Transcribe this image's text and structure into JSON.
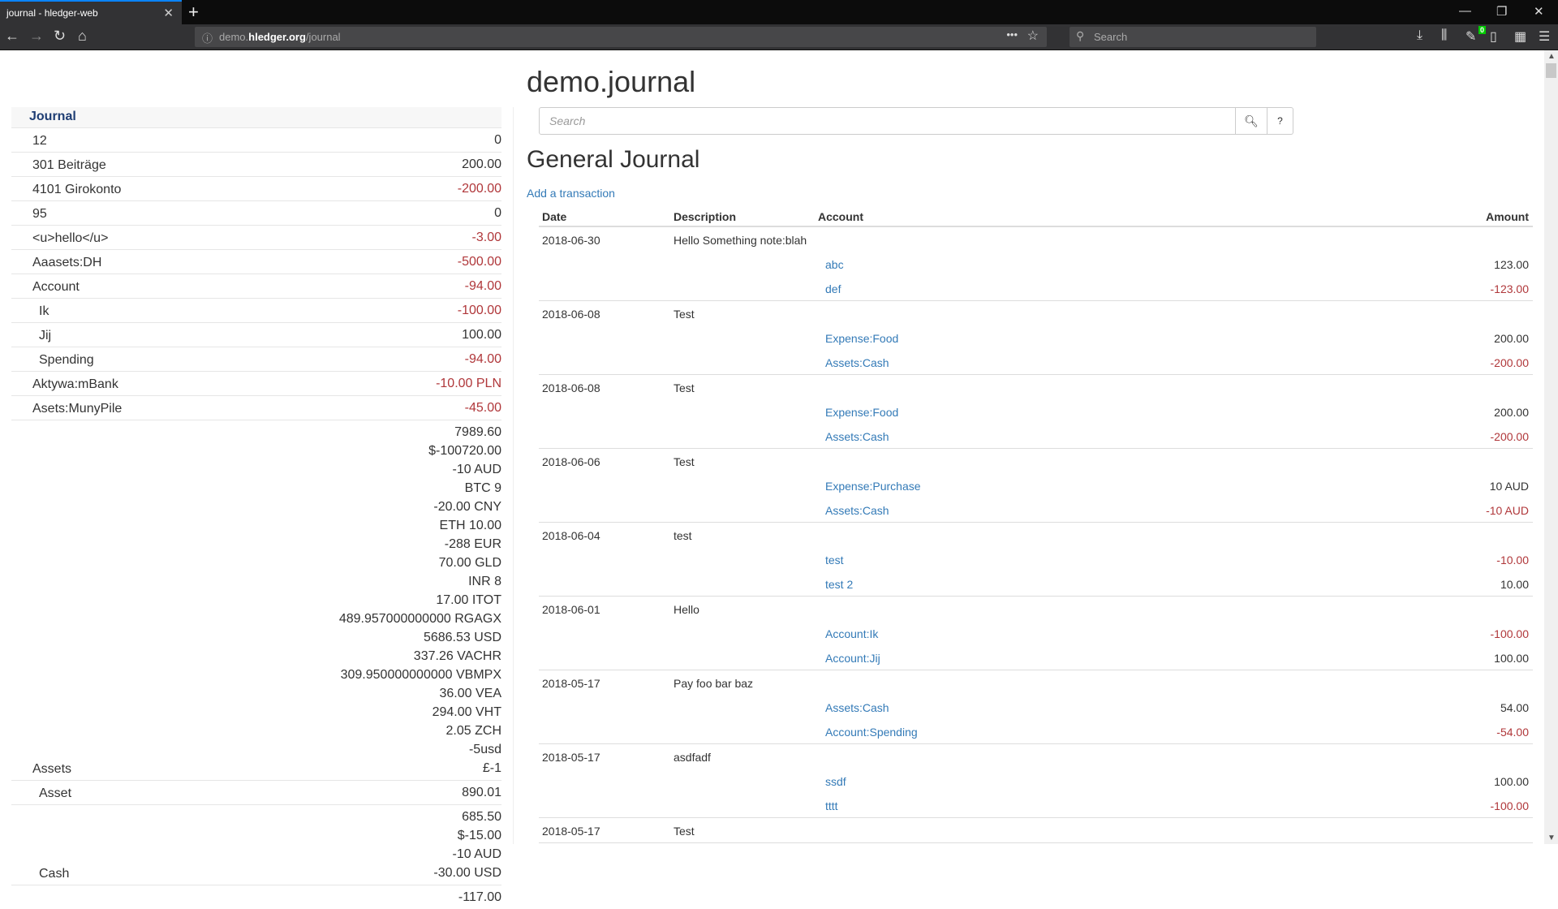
{
  "browser": {
    "tab_title": "journal - hledger-web",
    "url_host_pre": "demo.",
    "url_host_bold": "hledger.org",
    "url_path": "/journal",
    "search_placeholder": "Search",
    "badge": "0"
  },
  "sidebar": {
    "header": "Journal",
    "rows": [
      {
        "name": "12",
        "indent": 0,
        "amounts": [
          {
            "v": "0",
            "neg": false
          }
        ]
      },
      {
        "name": "301 Beiträge",
        "indent": 0,
        "amounts": [
          {
            "v": "200.00",
            "neg": false
          }
        ]
      },
      {
        "name": "4101 Girokonto",
        "indent": 0,
        "amounts": [
          {
            "v": "-200.00",
            "neg": true
          }
        ]
      },
      {
        "name": "95",
        "indent": 0,
        "amounts": [
          {
            "v": "0",
            "neg": false
          }
        ]
      },
      {
        "name": "<u>hello</u>",
        "indent": 0,
        "amounts": [
          {
            "v": "-3.00",
            "neg": true
          }
        ]
      },
      {
        "name": "Aaasets:DH",
        "indent": 0,
        "amounts": [
          {
            "v": "-500.00",
            "neg": true
          }
        ]
      },
      {
        "name": "Account",
        "indent": 0,
        "amounts": [
          {
            "v": "-94.00",
            "neg": true
          }
        ]
      },
      {
        "name": "Ik",
        "indent": 1,
        "amounts": [
          {
            "v": "-100.00",
            "neg": true
          }
        ]
      },
      {
        "name": "Jij",
        "indent": 1,
        "amounts": [
          {
            "v": "100.00",
            "neg": false
          }
        ]
      },
      {
        "name": "Spending",
        "indent": 1,
        "amounts": [
          {
            "v": "-94.00",
            "neg": true
          }
        ]
      },
      {
        "name": "Aktywa:mBank",
        "indent": 0,
        "amounts": [
          {
            "v": "-10.00 PLN",
            "neg": true
          }
        ]
      },
      {
        "name": "Asets:MunyPile",
        "indent": 0,
        "amounts": [
          {
            "v": "-45.00",
            "neg": true
          }
        ]
      },
      {
        "name": "Assets",
        "indent": 0,
        "amounts": [
          {
            "v": "7989.60",
            "neg": false
          },
          {
            "v": "$-100720.00",
            "neg": false
          },
          {
            "v": "-10 AUD",
            "neg": false
          },
          {
            "v": "BTC 9",
            "neg": false
          },
          {
            "v": "-20.00 CNY",
            "neg": false
          },
          {
            "v": "ETH 10.00",
            "neg": false
          },
          {
            "v": "-288 EUR",
            "neg": false
          },
          {
            "v": "70.00 GLD",
            "neg": false
          },
          {
            "v": "INR 8",
            "neg": false
          },
          {
            "v": "17.00 ITOT",
            "neg": false
          },
          {
            "v": "489.957000000000 RGAGX",
            "neg": false
          },
          {
            "v": "5686.53 USD",
            "neg": false
          },
          {
            "v": "337.26 VACHR",
            "neg": false
          },
          {
            "v": "309.950000000000 VBMPX",
            "neg": false
          },
          {
            "v": "36.00 VEA",
            "neg": false
          },
          {
            "v": "294.00 VHT",
            "neg": false
          },
          {
            "v": "2.05 ZCH",
            "neg": false
          },
          {
            "v": "-5usd",
            "neg": false
          },
          {
            "v": "£-1",
            "neg": false
          }
        ]
      },
      {
        "name": "Asset",
        "indent": 1,
        "amounts": [
          {
            "v": "890.01",
            "neg": false
          }
        ]
      },
      {
        "name": "Cash",
        "indent": 1,
        "amounts": [
          {
            "v": "685.50",
            "neg": false
          },
          {
            "v": "$-15.00",
            "neg": false
          },
          {
            "v": "-10 AUD",
            "neg": false
          },
          {
            "v": "-30.00 USD",
            "neg": false
          }
        ]
      },
      {
        "name": "",
        "indent": 1,
        "amounts": [
          {
            "v": "-117.00",
            "neg": false
          }
        ]
      }
    ]
  },
  "main": {
    "title": "demo.journal",
    "search_placeholder": "Search",
    "help_label": "?",
    "heading": "General Journal",
    "add_link": "Add a transaction",
    "columns": [
      "Date",
      "Description",
      "Account",
      "Amount"
    ],
    "transactions": [
      {
        "date": "2018-06-30",
        "desc": "Hello Something note:blah",
        "postings": [
          {
            "account": "abc",
            "amount": "123.00",
            "neg": false
          },
          {
            "account": "def",
            "amount": "-123.00",
            "neg": true
          }
        ]
      },
      {
        "date": "2018-06-08",
        "desc": "Test",
        "postings": [
          {
            "account": "Expense:Food",
            "amount": "200.00",
            "neg": false
          },
          {
            "account": "Assets:Cash",
            "amount": "-200.00",
            "neg": true
          }
        ]
      },
      {
        "date": "2018-06-08",
        "desc": "Test",
        "postings": [
          {
            "account": "Expense:Food",
            "amount": "200.00",
            "neg": false
          },
          {
            "account": "Assets:Cash",
            "amount": "-200.00",
            "neg": true
          }
        ]
      },
      {
        "date": "2018-06-06",
        "desc": "Test",
        "postings": [
          {
            "account": "Expense:Purchase",
            "amount": "10 AUD",
            "neg": false
          },
          {
            "account": "Assets:Cash",
            "amount": "-10 AUD",
            "neg": true
          }
        ]
      },
      {
        "date": "2018-06-04",
        "desc": "test",
        "postings": [
          {
            "account": "test",
            "amount": "-10.00",
            "neg": true
          },
          {
            "account": "test 2",
            "amount": "10.00",
            "neg": false
          }
        ]
      },
      {
        "date": "2018-06-01",
        "desc": "Hello",
        "postings": [
          {
            "account": "Account:Ik",
            "amount": "-100.00",
            "neg": true
          },
          {
            "account": "Account:Jij",
            "amount": "100.00",
            "neg": false
          }
        ]
      },
      {
        "date": "2018-05-17",
        "desc": "Pay foo bar baz",
        "postings": [
          {
            "account": "Assets:Cash",
            "amount": "54.00",
            "neg": false
          },
          {
            "account": "Account:Spending",
            "amount": "-54.00",
            "neg": true
          }
        ]
      },
      {
        "date": "2018-05-17",
        "desc": "asdfadf",
        "postings": [
          {
            "account": "ssdf",
            "amount": "100.00",
            "neg": false
          },
          {
            "account": "tttt",
            "amount": "-100.00",
            "neg": true
          }
        ]
      },
      {
        "date": "2018-05-17",
        "desc": "Test",
        "postings": []
      }
    ]
  },
  "colors": {
    "negative": "#b0373a",
    "link": "#337ab7",
    "sidebar_header": "#1e3d73"
  }
}
